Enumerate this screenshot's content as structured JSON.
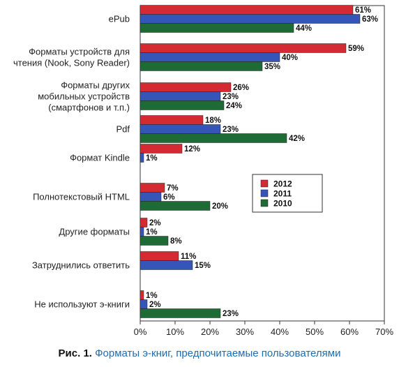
{
  "chart_data": {
    "type": "bar",
    "orientation": "horizontal",
    "categories": [
      [
        "ePub"
      ],
      [
        "Форматы устройств для",
        "чтения (Nook, Sony Reader)"
      ],
      [
        "Форматы других",
        "мобильных устройств",
        "(смартфонов и т.п.)"
      ],
      [
        "Pdf"
      ],
      [
        "Формат Kindle"
      ],
      [
        "Полнотекстовый HTML"
      ],
      [
        "Другие форматы"
      ],
      [
        "Затруднились ответить"
      ],
      [
        "Не используют э-книги"
      ]
    ],
    "series": [
      {
        "name": "2012",
        "color": "#d42a32",
        "values": [
          61,
          59,
          26,
          18,
          12,
          7,
          2,
          11,
          1
        ],
        "labels": [
          "61%",
          "59%",
          "26%",
          "18%",
          "12%",
          "7%",
          "2%",
          "11%",
          "1%"
        ]
      },
      {
        "name": "2011",
        "color": "#3556b8",
        "values": [
          63,
          40,
          23,
          23,
          1,
          6,
          1,
          15,
          2
        ],
        "labels": [
          "63%",
          "40%",
          "23%",
          "23%",
          "1%",
          "6%",
          "1%",
          "15%",
          "2%"
        ]
      },
      {
        "name": "2010",
        "color": "#1f6b35",
        "values": [
          44,
          35,
          24,
          42,
          null,
          20,
          8,
          null,
          23
        ],
        "labels": [
          "44%",
          "35%",
          "24%",
          "42%",
          "",
          "20%",
          "8%",
          "",
          "23%"
        ]
      }
    ],
    "x_ticks": [
      "0%",
      "10%",
      "20%",
      "30%",
      "40%",
      "50%",
      "60%",
      "70%"
    ],
    "xlim": [
      0,
      70
    ],
    "legend": {
      "position": "right-middle",
      "order": [
        "2012",
        "2011",
        "2010"
      ]
    }
  },
  "caption": {
    "fig_label": "Рис. 1.",
    "title": "Форматы э-книг, предпочитаемые пользователями"
  }
}
